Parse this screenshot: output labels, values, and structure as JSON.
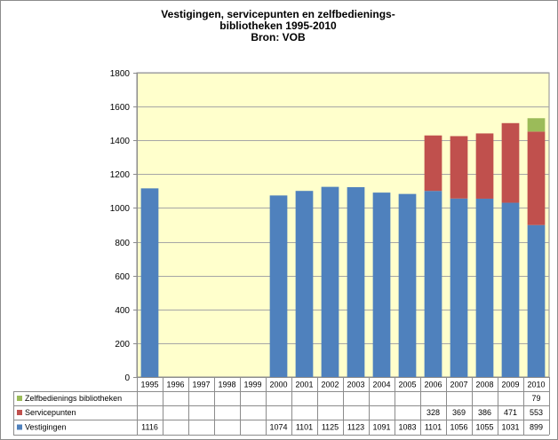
{
  "chart_data": {
    "type": "bar",
    "stacked": true,
    "title_lines": [
      "Vestigingen,  servicepunten  en zelfbedienings-",
      "bibliotheken   1995-2010",
      "Bron:  VOB"
    ],
    "categories": [
      "1995",
      "1996",
      "1997",
      "1998",
      "1999",
      "2000",
      "2001",
      "2002",
      "2003",
      "2004",
      "2005",
      "2006",
      "2007",
      "2008",
      "2009",
      "2010"
    ],
    "series": [
      {
        "name": "Vestigingen",
        "color": "#4f81bd",
        "values": [
          1116,
          null,
          null,
          null,
          null,
          1074,
          1101,
          1125,
          1123,
          1091,
          1083,
          1101,
          1056,
          1055,
          1031,
          899
        ]
      },
      {
        "name": "Servicepunten",
        "color": "#c0504d",
        "values": [
          null,
          null,
          null,
          null,
          null,
          null,
          null,
          null,
          null,
          null,
          null,
          328,
          369,
          386,
          471,
          553
        ]
      },
      {
        "name": "Zelfbedienings bibliotheken",
        "color": "#9bbb59",
        "values": [
          null,
          null,
          null,
          null,
          null,
          null,
          null,
          null,
          null,
          null,
          null,
          null,
          null,
          null,
          null,
          79
        ]
      }
    ],
    "ylim": [
      0,
      1800
    ],
    "yticks": [
      "0",
      "200",
      "400",
      "600",
      "800",
      "1000",
      "1200",
      "1400",
      "1600",
      "1800"
    ],
    "grid": true,
    "plot_background": "#ffffcc",
    "legend": "data-table-below"
  }
}
